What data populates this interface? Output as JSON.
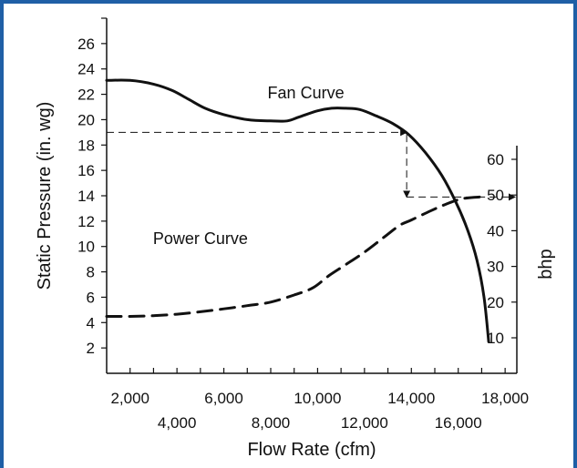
{
  "chart_data": {
    "type": "line",
    "xlabel": "Flow Rate (cfm)",
    "ylabel": "Static Pressure (in. wg)",
    "y2label": "bhp",
    "xlim": [
      1000,
      18500
    ],
    "ylim": [
      0,
      28
    ],
    "y2lim": [
      0,
      68
    ],
    "x_ticks": [
      {
        "value": 2000,
        "label": "2,000"
      },
      {
        "value": 4000,
        "label": "4,000"
      },
      {
        "value": 6000,
        "label": "6,000"
      },
      {
        "value": 8000,
        "label": "8,000"
      },
      {
        "value": 10000,
        "label": "10,000"
      },
      {
        "value": 12000,
        "label": "12,000"
      },
      {
        "value": 14000,
        "label": "14,000"
      },
      {
        "value": 16000,
        "label": "16,000"
      },
      {
        "value": 18000,
        "label": "18,000"
      }
    ],
    "y_ticks": [
      {
        "value": 2,
        "label": "2"
      },
      {
        "value": 4,
        "label": "4"
      },
      {
        "value": 6,
        "label": "6"
      },
      {
        "value": 8,
        "label": "8"
      },
      {
        "value": 10,
        "label": "10"
      },
      {
        "value": 12,
        "label": "12"
      },
      {
        "value": 14,
        "label": "14"
      },
      {
        "value": 16,
        "label": "16"
      },
      {
        "value": 18,
        "label": "18"
      },
      {
        "value": 20,
        "label": "20"
      },
      {
        "value": 22,
        "label": "22"
      },
      {
        "value": 24,
        "label": "24"
      },
      {
        "value": 26,
        "label": "26"
      }
    ],
    "y2_ticks": [
      {
        "value": 10,
        "label": "10"
      },
      {
        "value": 20,
        "label": "20"
      },
      {
        "value": 30,
        "label": "30"
      },
      {
        "value": 40,
        "label": "40"
      },
      {
        "value": 50,
        "label": "50"
      },
      {
        "value": 60,
        "label": "60"
      }
    ],
    "series": [
      {
        "name": "Fan Curve",
        "axis": "left",
        "style": "solid",
        "x": [
          1000,
          2000,
          3000,
          3800,
          4500,
          5200,
          6000,
          7000,
          8000,
          8700,
          9200,
          10000,
          10600,
          11200,
          11800,
          12500,
          13200,
          13900,
          14600,
          15300,
          15900,
          16400,
          16800,
          17100,
          17300
        ],
        "y": [
          23.1,
          23.1,
          22.8,
          22.3,
          21.6,
          20.9,
          20.4,
          20.0,
          19.9,
          19.9,
          20.2,
          20.7,
          20.9,
          20.9,
          20.8,
          20.3,
          19.7,
          18.8,
          17.4,
          15.6,
          13.5,
          11.3,
          8.9,
          6.0,
          2.5
        ]
      },
      {
        "name": "Power Curve",
        "axis": "right",
        "style": "dashed",
        "x": [
          1000,
          2000,
          3000,
          4000,
          5000,
          6000,
          7000,
          8000,
          9000,
          9800,
          10500,
          11200,
          12000,
          12800,
          13500,
          14000,
          14800,
          15500,
          16200,
          17000
        ],
        "y": [
          16,
          16,
          16.2,
          16.6,
          17.3,
          18.1,
          19.0,
          20.0,
          22.0,
          24.0,
          27.5,
          30.5,
          34.0,
          38.0,
          41.5,
          43.0,
          45.5,
          47.5,
          49.0,
          49.5
        ]
      }
    ],
    "annotations": [
      {
        "text": "Fan Curve",
        "x": 9500,
        "y": 21.7
      },
      {
        "text": "Power Curve",
        "x": 5000,
        "y": 10.2
      }
    ],
    "reference_lines": [
      {
        "from": {
          "x": 1000,
          "y": 19.0
        },
        "to": {
          "x": 13800,
          "y": 19.0
        },
        "axis": "left",
        "arrow": true
      },
      {
        "from": {
          "x": 13800,
          "y": 18.8
        },
        "to": {
          "x": 13800,
          "y": 13.9
        },
        "axis": "left",
        "arrow": true
      },
      {
        "from": {
          "x": 13800,
          "y": 13.9
        },
        "to": {
          "x": 18500,
          "y": 13.9
        },
        "axis": "left",
        "arrow": true
      }
    ],
    "grid": false,
    "legend": "none"
  },
  "colors": {
    "frame": "#1f5fa6",
    "ink": "#111111"
  }
}
